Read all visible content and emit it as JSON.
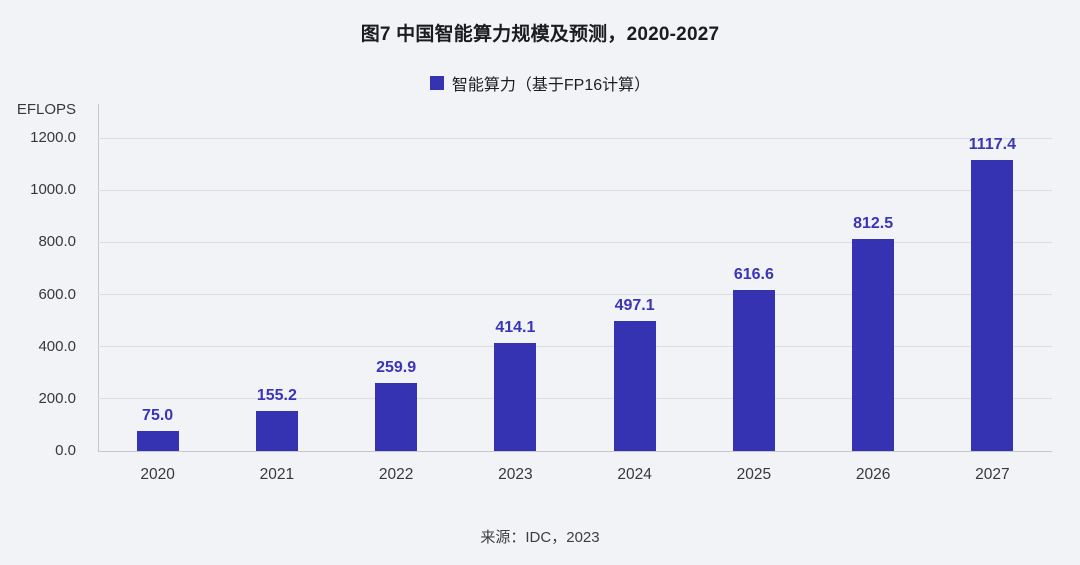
{
  "title": "图7 中国智能算力规模及预测，2020-2027",
  "legend": {
    "label": "智能算力（基于FP16计算）"
  },
  "axis_unit_label": "EFLOPS",
  "source": "来源：IDC，2023",
  "colors": {
    "background": "#f2f3f7",
    "bar": "#3533b1",
    "value_label": "#3a34b8",
    "grid": "#dcdde1",
    "axis": "#c6c7cb",
    "tick_text": "#38383b"
  },
  "chart_data": {
    "type": "bar",
    "title": "图7 中国智能算力规模及预测，2020-2027",
    "categories": [
      "2020",
      "2021",
      "2022",
      "2023",
      "2024",
      "2025",
      "2026",
      "2027"
    ],
    "series": [
      {
        "name": "智能算力（基于FP16计算）",
        "values": [
          75.0,
          155.2,
          259.9,
          414.1,
          497.1,
          616.6,
          812.5,
          1117.4
        ],
        "value_labels": [
          "75.0",
          "155.2",
          "259.9",
          "414.1",
          "497.1",
          "616.6",
          "812.5",
          "1117.4"
        ]
      }
    ],
    "xlabel": "",
    "ylabel": "EFLOPS",
    "ylim": [
      0,
      1200
    ],
    "ytick_interval": 200,
    "ytick_labels": [
      "0.0",
      "200.0",
      "400.0",
      "600.0",
      "800.0",
      "1000.0",
      "1200.0"
    ],
    "grid": true,
    "legend_position": "top",
    "value_labels_shown": true
  }
}
